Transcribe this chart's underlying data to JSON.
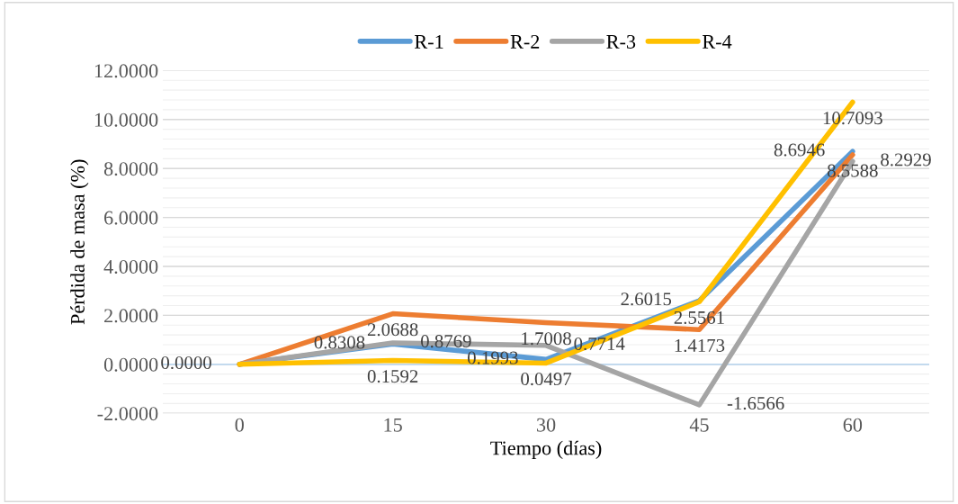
{
  "chart_data": {
    "type": "line",
    "xlabel": "Tiempo (días)",
    "ylabel": "Pérdida de masa (%)",
    "categories": [
      "0",
      "15",
      "30",
      "45",
      "60"
    ],
    "series": [
      {
        "name": "R-1",
        "color": "#5b9bd5",
        "values": [
          0.0,
          0.8308,
          0.1993,
          2.6015,
          8.6946
        ],
        "value_labels": [
          "0.0000",
          "0.8308",
          "0.1993",
          "2.6015",
          "8.6946"
        ]
      },
      {
        "name": "R-2",
        "color": "#ed7d31",
        "values": [
          0.0,
          2.0688,
          1.7008,
          1.4173,
          8.5588
        ],
        "value_labels": [
          null,
          "2.0688",
          "1.7008",
          "1.4173",
          "8.5588"
        ]
      },
      {
        "name": "R-3",
        "color": "#a5a5a5",
        "values": [
          0.0,
          0.8769,
          0.7714,
          -1.6566,
          8.2929
        ],
        "value_labels": [
          null,
          "0.8769",
          "0.7714",
          "-1.6566",
          "8.2929"
        ]
      },
      {
        "name": "R-4",
        "color": "#ffc000",
        "values": [
          0.0,
          0.1592,
          0.0497,
          2.5561,
          10.7093
        ],
        "value_labels": [
          null,
          "0.1592",
          "0.0497",
          "2.5561",
          "10.7093"
        ]
      }
    ],
    "ylim": [
      -2,
      12
    ],
    "yticks": [
      {
        "value": -2,
        "label": "-2.0000"
      },
      {
        "value": 0,
        "label": "0.0000"
      },
      {
        "value": 2,
        "label": "2.0000"
      },
      {
        "value": 4,
        "label": "4.0000"
      },
      {
        "value": 6,
        "label": "6.0000"
      },
      {
        "value": 8,
        "label": "8.0000"
      },
      {
        "value": 10,
        "label": "10.0000"
      },
      {
        "value": 12,
        "label": "12.0000"
      }
    ],
    "ref_lines": [
      {
        "axis": "y",
        "value": 0,
        "color": "#bdd7ee"
      }
    ],
    "grid": "y",
    "legend": "top",
    "marker": "none",
    "line_style": "solid"
  }
}
